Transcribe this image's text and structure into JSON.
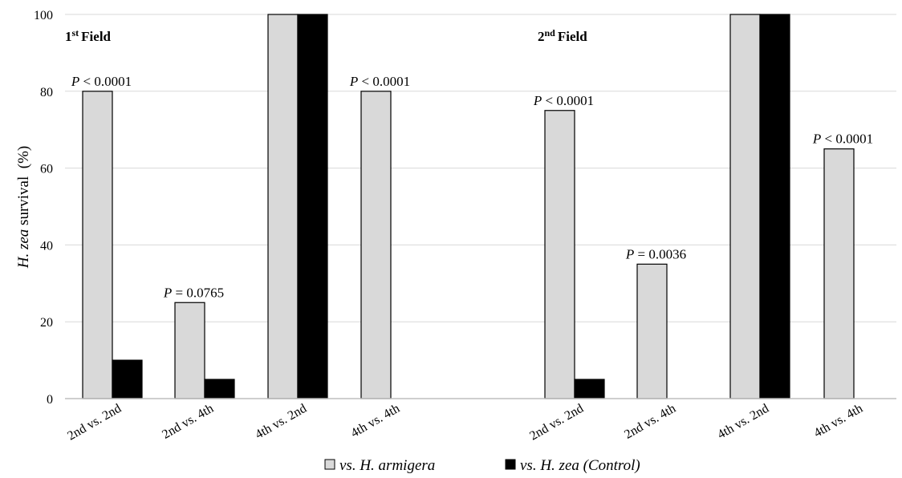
{
  "chart_data": {
    "type": "bar",
    "ylabel_italic": "H. zea",
    "ylabel_rest": " survival  (%)",
    "ylim": [
      0,
      100
    ],
    "yticks": [
      0,
      20,
      40,
      60,
      80,
      100
    ],
    "grid": true,
    "legend_position": "bottom-center",
    "groups": [
      {
        "label": "Field",
        "label_num": "1",
        "label_sup": "st",
        "categories": [
          "2nd vs. 2nd",
          "2nd vs. 4th",
          "4th vs. 2nd",
          "4th vs. 4th"
        ]
      },
      {
        "label": "Field",
        "label_num": "2",
        "label_sup": "nd",
        "categories": [
          "2nd vs. 2nd",
          "2nd vs. 4th",
          "4th vs. 2nd",
          "4th vs. 4th"
        ]
      }
    ],
    "series": [
      {
        "name": "vs. H. armigera",
        "color": "#d9d9d9",
        "values": [
          80,
          25,
          100,
          80,
          75,
          35,
          100,
          65
        ]
      },
      {
        "name": "vs. H. zea (Control)",
        "color": "#000000",
        "values": [
          10,
          5,
          100,
          0,
          5,
          0,
          100,
          0
        ]
      }
    ],
    "annotations": [
      {
        "index": 0,
        "p": "P",
        "rest": " < 0.0001"
      },
      {
        "index": 1,
        "p": "P",
        "rest": " = 0.0765"
      },
      {
        "index": 3,
        "p": "P",
        "rest": " < 0.0001"
      },
      {
        "index": 4,
        "p": "P",
        "rest": " < 0.0001"
      },
      {
        "index": 5,
        "p": "P",
        "rest": " = 0.0036"
      },
      {
        "index": 7,
        "p": "P",
        "rest": " < 0.0001"
      }
    ]
  }
}
